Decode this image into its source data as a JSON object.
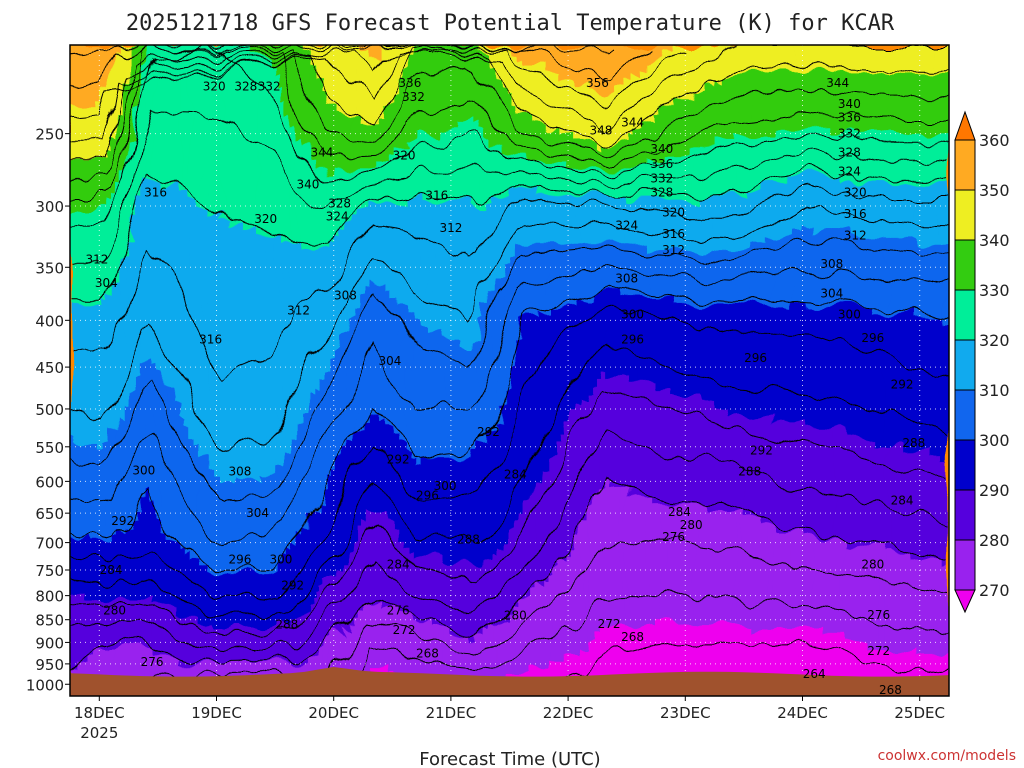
{
  "chart_data": {
    "type": "heatmap",
    "title": "2025121718 GFS Forecast Potential Temperature (K) for KCAR",
    "xlabel": "Forecast Time (UTC)",
    "ylabel": "",
    "credit": "coolwx.com/models",
    "variable": "Potential Temperature (K)",
    "station": "KCAR",
    "x_ticks": [
      "18DEC",
      "19DEC",
      "20DEC",
      "21DEC",
      "22DEC",
      "23DEC",
      "24DEC",
      "25DEC"
    ],
    "x_year_label": "2025",
    "x_range_days": [
      17.75,
      25.25
    ],
    "y_ticks": [
      250,
      300,
      350,
      400,
      450,
      500,
      550,
      600,
      650,
      700,
      750,
      800,
      850,
      900,
      950,
      1000
    ],
    "y_range_hpa": [
      1030,
      200
    ],
    "y_scale": "log",
    "colorbar": {
      "levels": [
        270,
        280,
        290,
        300,
        310,
        320,
        330,
        340,
        350,
        360
      ],
      "colors": [
        "#ee00ee",
        "#9922ee",
        "#5500dd",
        "#0000cc",
        "#1166ee",
        "#11aaee",
        "#00ee99",
        "#33cc11",
        "#eeee22",
        "#ffaa22",
        "#ff7700"
      ],
      "extends": "both"
    },
    "contour_interval_k": 4,
    "contour_labels": [
      {
        "day": 17.98,
        "p": 343,
        "value": "312"
      },
      {
        "day": 18.06,
        "p": 364,
        "value": "304"
      },
      {
        "day": 18.38,
        "p": 584,
        "value": "300"
      },
      {
        "day": 18.2,
        "p": 663,
        "value": "292"
      },
      {
        "day": 18.1,
        "p": 750,
        "value": "284"
      },
      {
        "day": 18.13,
        "p": 830,
        "value": "280"
      },
      {
        "day": 18.45,
        "p": 945,
        "value": "276"
      },
      {
        "day": 18.48,
        "p": 290,
        "value": "316"
      },
      {
        "day": 18.98,
        "p": 222,
        "value": "320"
      },
      {
        "day": 19.25,
        "p": 222,
        "value": "328"
      },
      {
        "day": 19.45,
        "p": 222,
        "value": "332"
      },
      {
        "day": 19.42,
        "p": 310,
        "value": "320"
      },
      {
        "day": 18.95,
        "p": 420,
        "value": "316"
      },
      {
        "day": 19.2,
        "p": 585,
        "value": "308"
      },
      {
        "day": 19.35,
        "p": 650,
        "value": "304"
      },
      {
        "day": 19.2,
        "p": 730,
        "value": "296"
      },
      {
        "day": 19.55,
        "p": 730,
        "value": "300"
      },
      {
        "day": 19.65,
        "p": 780,
        "value": "292"
      },
      {
        "day": 19.6,
        "p": 860,
        "value": "288"
      },
      {
        "day": 19.9,
        "p": 262,
        "value": "344"
      },
      {
        "day": 19.78,
        "p": 284,
        "value": "340"
      },
      {
        "day": 20.05,
        "p": 298,
        "value": "328"
      },
      {
        "day": 20.03,
        "p": 308,
        "value": "324"
      },
      {
        "day": 19.7,
        "p": 390,
        "value": "312"
      },
      {
        "day": 20.1,
        "p": 376,
        "value": "308"
      },
      {
        "day": 20.48,
        "p": 443,
        "value": "304"
      },
      {
        "day": 20.55,
        "p": 568,
        "value": "292"
      },
      {
        "day": 20.95,
        "p": 607,
        "value": "300"
      },
      {
        "day": 20.8,
        "p": 622,
        "value": "296"
      },
      {
        "day": 21.15,
        "p": 695,
        "value": "288"
      },
      {
        "day": 20.55,
        "p": 740,
        "value": "284"
      },
      {
        "day": 20.55,
        "p": 830,
        "value": "276"
      },
      {
        "day": 20.6,
        "p": 872,
        "value": "272"
      },
      {
        "day": 20.8,
        "p": 925,
        "value": "268"
      },
      {
        "day": 20.65,
        "p": 220,
        "value": "336"
      },
      {
        "day": 20.68,
        "p": 228,
        "value": "332"
      },
      {
        "day": 20.6,
        "p": 264,
        "value": "320"
      },
      {
        "day": 20.88,
        "p": 292,
        "value": "316"
      },
      {
        "day": 21.0,
        "p": 317,
        "value": "312"
      },
      {
        "day": 21.32,
        "p": 530,
        "value": "292"
      },
      {
        "day": 21.55,
        "p": 590,
        "value": "284"
      },
      {
        "day": 21.55,
        "p": 841,
        "value": "280"
      },
      {
        "day": 22.35,
        "p": 859,
        "value": "272"
      },
      {
        "day": 22.55,
        "p": 888,
        "value": "268"
      },
      {
        "day": 22.25,
        "p": 220,
        "value": "356"
      },
      {
        "day": 22.28,
        "p": 248,
        "value": "348"
      },
      {
        "day": 22.55,
        "p": 243,
        "value": "344"
      },
      {
        "day": 22.5,
        "p": 315,
        "value": "324"
      },
      {
        "day": 22.8,
        "p": 260,
        "value": "340"
      },
      {
        "day": 22.8,
        "p": 270,
        "value": "336"
      },
      {
        "day": 22.8,
        "p": 280,
        "value": "332"
      },
      {
        "day": 22.8,
        "p": 290,
        "value": "328"
      },
      {
        "day": 22.9,
        "p": 305,
        "value": "320"
      },
      {
        "day": 22.9,
        "p": 322,
        "value": "316"
      },
      {
        "day": 22.9,
        "p": 335,
        "value": "312"
      },
      {
        "day": 22.5,
        "p": 360,
        "value": "308"
      },
      {
        "day": 22.55,
        "p": 394,
        "value": "300"
      },
      {
        "day": 22.55,
        "p": 420,
        "value": "296"
      },
      {
        "day": 22.95,
        "p": 648,
        "value": "284"
      },
      {
        "day": 23.05,
        "p": 670,
        "value": "280"
      },
      {
        "day": 22.9,
        "p": 690,
        "value": "276"
      },
      {
        "day": 23.6,
        "p": 440,
        "value": "296"
      },
      {
        "day": 23.65,
        "p": 555,
        "value": "292"
      },
      {
        "day": 23.55,
        "p": 585,
        "value": "288"
      },
      {
        "day": 24.3,
        "p": 220,
        "value": "344"
      },
      {
        "day": 24.4,
        "p": 232,
        "value": "340"
      },
      {
        "day": 24.4,
        "p": 240,
        "value": "336"
      },
      {
        "day": 24.4,
        "p": 250,
        "value": "332"
      },
      {
        "day": 24.4,
        "p": 262,
        "value": "328"
      },
      {
        "day": 24.4,
        "p": 275,
        "value": "324"
      },
      {
        "day": 24.45,
        "p": 290,
        "value": "320"
      },
      {
        "day": 24.45,
        "p": 306,
        "value": "316"
      },
      {
        "day": 24.45,
        "p": 323,
        "value": "312"
      },
      {
        "day": 24.25,
        "p": 347,
        "value": "308"
      },
      {
        "day": 24.25,
        "p": 374,
        "value": "304"
      },
      {
        "day": 24.4,
        "p": 394,
        "value": "300"
      },
      {
        "day": 24.6,
        "p": 418,
        "value": "296"
      },
      {
        "day": 24.85,
        "p": 470,
        "value": "292"
      },
      {
        "day": 24.95,
        "p": 545,
        "value": "288"
      },
      {
        "day": 24.85,
        "p": 630,
        "value": "284"
      },
      {
        "day": 24.6,
        "p": 740,
        "value": "280"
      },
      {
        "day": 24.65,
        "p": 840,
        "value": "276"
      },
      {
        "day": 24.65,
        "p": 920,
        "value": "272"
      },
      {
        "day": 24.1,
        "p": 975,
        "value": "264"
      },
      {
        "day": 24.75,
        "p": 1015,
        "value": "268"
      }
    ]
  }
}
